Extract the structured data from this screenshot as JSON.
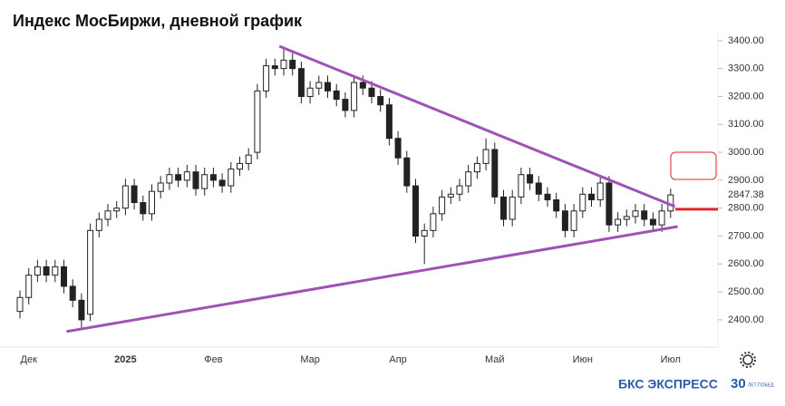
{
  "chart_data": {
    "type": "candlestick",
    "title": "Индекс МосБиржи, дневной график",
    "categories": [
      null,
      "Дек",
      null,
      null,
      null,
      null,
      null,
      null,
      null,
      null,
      null,
      null,
      "2025",
      null,
      null,
      null,
      null,
      null,
      null,
      null,
      null,
      null,
      "Фев",
      null,
      null,
      null,
      null,
      null,
      null,
      null,
      null,
      null,
      null,
      "Мар",
      null,
      null,
      null,
      null,
      null,
      null,
      null,
      null,
      null,
      "Апр",
      null,
      null,
      null,
      null,
      null,
      null,
      null,
      null,
      null,
      null,
      "Май",
      null,
      null,
      null,
      null,
      null,
      null,
      null,
      null,
      null,
      "Июн",
      null,
      null,
      null,
      null,
      null,
      null,
      null,
      null,
      null,
      "Июл"
    ],
    "open": [
      2430,
      2480,
      2560,
      2590,
      2560,
      2590,
      2520,
      2470,
      2420,
      2720,
      2760,
      2790,
      2800,
      2880,
      2820,
      2780,
      2860,
      2890,
      2920,
      2900,
      2930,
      2870,
      2920,
      2900,
      2880,
      2940,
      2960,
      3000,
      3220,
      3310,
      3300,
      3330,
      3300,
      3200,
      3230,
      3250,
      3220,
      3190,
      3150,
      3250,
      3230,
      3200,
      3170,
      3050,
      2980,
      2880,
      2700,
      2720,
      2780,
      2840,
      2850,
      2880,
      2930,
      2960,
      3010,
      2840,
      2760,
      2840,
      2920,
      2890,
      2850,
      2830,
      2790,
      2720,
      2790,
      2850,
      2830,
      2890,
      2740,
      2760,
      2770,
      2790,
      2760,
      2740,
      2790
    ],
    "high": [
      2505,
      2585,
      2615,
      2615,
      2615,
      2615,
      2545,
      2495,
      2745,
      2785,
      2815,
      2825,
      2905,
      2905,
      2845,
      2885,
      2915,
      2945,
      2945,
      2955,
      2955,
      2945,
      2945,
      2925,
      2965,
      2985,
      3015,
      3245,
      3335,
      3335,
      3370,
      3355,
      3325,
      3255,
      3275,
      3275,
      3245,
      3215,
      3275,
      3275,
      3255,
      3225,
      3195,
      3075,
      3005,
      2905,
      2745,
      2805,
      2865,
      2875,
      2905,
      2955,
      2985,
      3050,
      3035,
      2865,
      2865,
      2945,
      2945,
      2915,
      2875,
      2855,
      2815,
      2815,
      2875,
      2875,
      2910,
      2915,
      2785,
      2795,
      2815,
      2815,
      2785,
      2815,
      2870
    ],
    "low": [
      2405,
      2455,
      2535,
      2535,
      2535,
      2495,
      2445,
      2370,
      2395,
      2695,
      2735,
      2765,
      2775,
      2795,
      2755,
      2755,
      2835,
      2865,
      2875,
      2875,
      2845,
      2845,
      2875,
      2855,
      2855,
      2915,
      2935,
      2975,
      3195,
      3275,
      3275,
      3275,
      3175,
      3175,
      3205,
      3195,
      3165,
      3125,
      3125,
      3205,
      3175,
      3145,
      3025,
      2955,
      2855,
      2675,
      2600,
      2695,
      2755,
      2815,
      2825,
      2855,
      2905,
      2935,
      2815,
      2735,
      2735,
      2815,
      2865,
      2825,
      2805,
      2765,
      2695,
      2695,
      2765,
      2805,
      2805,
      2715,
      2715,
      2735,
      2745,
      2735,
      2715,
      2715,
      2765
    ],
    "close": [
      2480,
      2560,
      2590,
      2560,
      2590,
      2520,
      2470,
      2400,
      2720,
      2760,
      2790,
      2800,
      2880,
      2820,
      2780,
      2860,
      2890,
      2920,
      2900,
      2930,
      2870,
      2920,
      2900,
      2880,
      2940,
      2960,
      2990,
      3220,
      3310,
      3300,
      3330,
      3300,
      3200,
      3230,
      3250,
      3220,
      3190,
      3150,
      3250,
      3230,
      3200,
      3170,
      3050,
      2980,
      2880,
      2700,
      2720,
      2780,
      2840,
      2850,
      2880,
      2930,
      2960,
      3010,
      2840,
      2760,
      2840,
      2920,
      2890,
      2850,
      2830,
      2790,
      2720,
      2790,
      2850,
      2830,
      2890,
      2740,
      2760,
      2770,
      2790,
      2760,
      2740,
      2790,
      2847.38
    ],
    "up_color": "#ffffff",
    "down_color": "#222222",
    "ylim": [
      2312,
      3432
    ],
    "yticks": [
      {
        "value": 2400,
        "label": "2400.00"
      },
      {
        "value": 2500,
        "label": "2500.00"
      },
      {
        "value": 2600,
        "label": "2600.00"
      },
      {
        "value": 2700,
        "label": "2700.00"
      },
      {
        "value": 2800,
        "label": "2800.00"
      },
      {
        "value": 2900,
        "label": "2900.00"
      },
      {
        "value": 3000,
        "label": "3000.00"
      },
      {
        "value": 3100,
        "label": "3100.00"
      },
      {
        "value": 3200,
        "label": "3200.00"
      },
      {
        "value": 3300,
        "label": "3300.00"
      },
      {
        "value": 3400,
        "label": "3400.00"
      }
    ],
    "last_price": 2847.38,
    "trendlines": [
      {
        "x": [
          29.5,
          74.5
        ],
        "values": [
          3380,
          2806
        ],
        "color": "#a052b4"
      },
      {
        "x": [
          5.3,
          74.8
        ],
        "values": [
          2358,
          2734
        ],
        "color": "#a052b4"
      }
    ],
    "level": {
      "value": 2796,
      "color": "#e0262a"
    },
    "brand": "БКС ЭКСПРЕСС",
    "logo": "30",
    "logo_sub": "ЛЕТ ПОБЕД"
  }
}
